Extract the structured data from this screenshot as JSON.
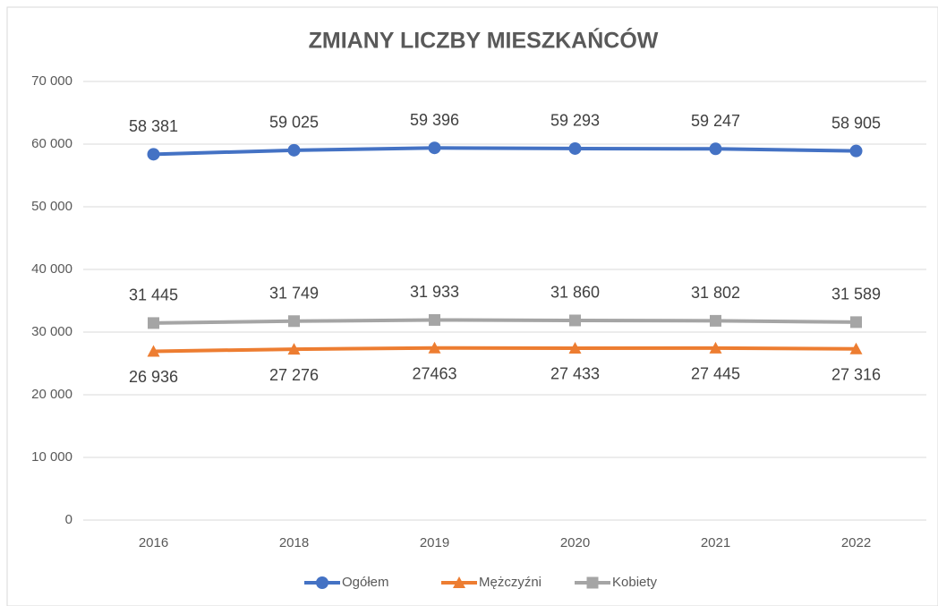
{
  "chart_data": {
    "type": "line",
    "title": "ZMIANY LICZBY MIESZKAŃCÓW",
    "categories": [
      "2016",
      "2018",
      "2019",
      "2020",
      "2021",
      "2022"
    ],
    "series": [
      {
        "name": "Ogółem",
        "color": "#4472c4",
        "marker": "circle",
        "label_position": "above",
        "values": [
          58381,
          59025,
          59396,
          59293,
          59247,
          58905
        ],
        "value_labels": [
          "58 381",
          "59 025",
          "59 396",
          "59 293",
          "59 247",
          "58 905"
        ]
      },
      {
        "name": "Mężczyźni",
        "color": "#ed7d31",
        "marker": "triangle",
        "label_position": "below",
        "values": [
          26936,
          27276,
          27463,
          27433,
          27445,
          27316
        ],
        "value_labels": [
          "26 936",
          "27 276",
          "27463",
          "27 433",
          "27 445",
          "27 316"
        ]
      },
      {
        "name": "Kobiety",
        "color": "#a5a5a5",
        "marker": "square",
        "label_position": "above",
        "values": [
          31445,
          31749,
          31933,
          31860,
          31802,
          31589
        ],
        "value_labels": [
          "31 445",
          "31 749",
          "31 933",
          "31 860",
          "31 802",
          "31 589"
        ]
      }
    ],
    "ylim": [
      0,
      70000
    ],
    "yticks": [
      0,
      {
        "value": 10000,
        "label": "10 000"
      },
      {
        "value": 20000,
        "label": "20 000"
      },
      {
        "value": 30000,
        "label": "30 000"
      },
      {
        "value": 40000,
        "label": "40 000"
      },
      {
        "value": 50000,
        "label": "50 000"
      },
      {
        "value": 60000,
        "label": "60 000"
      },
      {
        "value": 70000,
        "label": "70 000"
      }
    ],
    "grid": true,
    "legend": "bottom"
  }
}
